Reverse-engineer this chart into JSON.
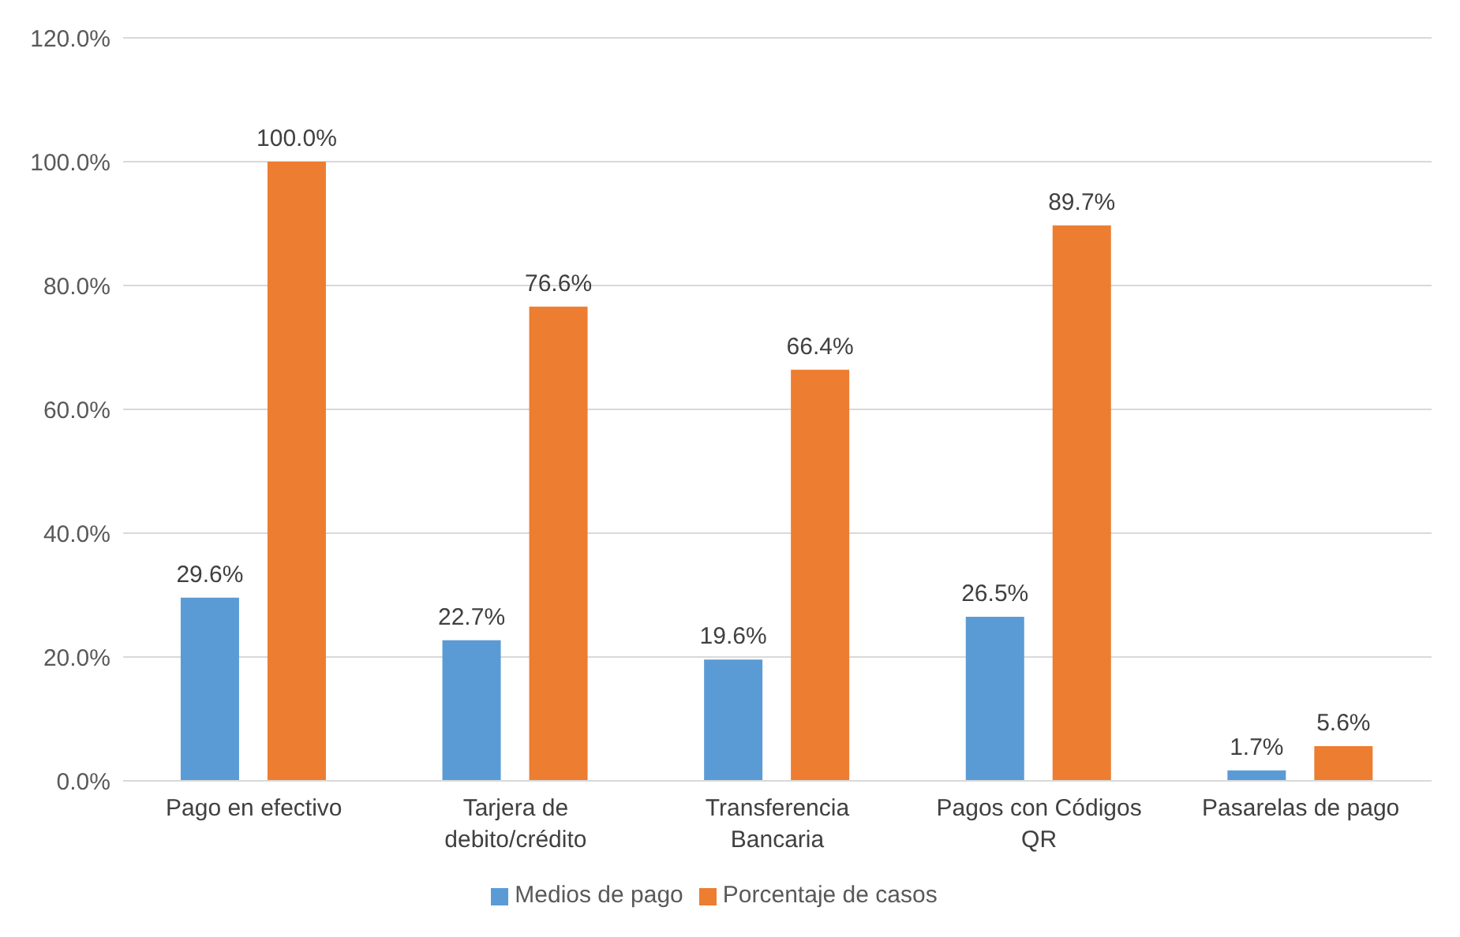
{
  "chart_data": {
    "type": "bar",
    "categories": [
      "Pago en efectivo",
      "Tarjera de debito/crédito",
      "Transferencia Bancaria",
      "Pagos con Códigos QR",
      "Pasarelas de pago"
    ],
    "series": [
      {
        "name": "Medios de pago",
        "color": "#5b9bd5",
        "values": [
          29.6,
          22.7,
          19.6,
          26.5,
          1.7
        ],
        "value_labels": [
          "29.6%",
          "22.7%",
          "19.6%",
          "26.5%",
          "1.7%"
        ]
      },
      {
        "name": "Porcentaje de casos",
        "color": "#ed7d31",
        "values": [
          100.0,
          76.6,
          66.4,
          89.7,
          5.6
        ],
        "value_labels": [
          "100.0%",
          "76.6%",
          "66.4%",
          "89.7%",
          "5.6%"
        ]
      }
    ],
    "ylim": [
      0,
      120
    ],
    "yticks": [
      {
        "value": 0,
        "label": "0.0%"
      },
      {
        "value": 20,
        "label": "20.0%"
      },
      {
        "value": 40,
        "label": "40.0%"
      },
      {
        "value": 60,
        "label": "60.0%"
      },
      {
        "value": 80,
        "label": "80.0%"
      },
      {
        "value": 100,
        "label": "100.0%"
      },
      {
        "value": 120,
        "label": "120.0%"
      }
    ],
    "grid": "y",
    "legend": "bottom"
  }
}
